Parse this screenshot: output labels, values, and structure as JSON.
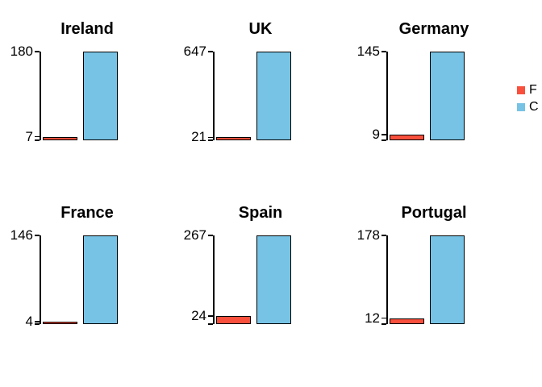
{
  "chart_data": {
    "type": "bar",
    "title": "",
    "layout": {
      "rows": 2,
      "cols": 3,
      "grid": "off",
      "legend_position": "right, clipped by image edge"
    },
    "series": [
      {
        "name": "F",
        "color": "#f8503c",
        "role": "small-value bar"
      },
      {
        "name": "C",
        "color": "#77c3e5",
        "role": "large-value bar, equals axis max"
      }
    ],
    "bar_outline": "#000000",
    "axis_color": "#000000",
    "panels": [
      {
        "title": "Ireland",
        "values": [
          7,
          180
        ],
        "y_ticks": [
          7,
          180
        ],
        "ylim": [
          0,
          180
        ]
      },
      {
        "title": "UK",
        "values": [
          21,
          647
        ],
        "y_ticks": [
          21,
          647
        ],
        "ylim": [
          0,
          647
        ]
      },
      {
        "title": "Germany",
        "values": [
          9,
          145
        ],
        "y_ticks": [
          9,
          145
        ],
        "ylim": [
          0,
          145
        ]
      },
      {
        "title": "France",
        "values": [
          4,
          146
        ],
        "y_ticks": [
          4,
          146
        ],
        "ylim": [
          0,
          146
        ]
      },
      {
        "title": "Spain",
        "values": [
          24,
          267
        ],
        "y_ticks": [
          24,
          267
        ],
        "ylim": [
          0,
          267
        ]
      },
      {
        "title": "Portugal",
        "values": [
          12,
          178
        ],
        "y_ticks": [
          12,
          178
        ],
        "ylim": [
          0,
          178
        ]
      }
    ]
  }
}
